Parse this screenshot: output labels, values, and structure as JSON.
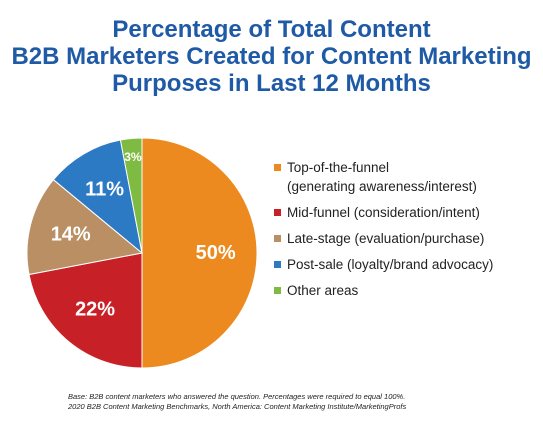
{
  "title_lines": [
    "Percentage of Total Content",
    "B2B Marketers Created for Content Marketing",
    "Purposes in Last 12 Months"
  ],
  "footnote_lines": [
    "Base: B2B content marketers who answered the question. Percentages were required to equal 100%.",
    "2020 B2B Content Marketing Benchmarks, North America: Content Marketing Institute/MarketingProfs"
  ],
  "chart_data": {
    "type": "pie",
    "title": "Percentage of Total Content B2B Marketers Created for Content Marketing Purposes in Last 12 Months",
    "legend_position": "right",
    "slices": [
      {
        "legend_lines": [
          "Top-of-the-funnel",
          "(generating awareness/interest)"
        ],
        "value": 50,
        "label": "50%",
        "color": "#ec8a1f"
      },
      {
        "legend_lines": [
          "Mid-funnel (consideration/intent)"
        ],
        "value": 22,
        "label": "22%",
        "color": "#c82027"
      },
      {
        "legend_lines": [
          "Late-stage (evaluation/purchase)"
        ],
        "value": 14,
        "label": "14%",
        "color": "#b98f63"
      },
      {
        "legend_lines": [
          "Post-sale (loyalty/brand advocacy)"
        ],
        "value": 11,
        "label": "11%",
        "color": "#2c79c4"
      },
      {
        "legend_lines": [
          "Other areas"
        ],
        "value": 3,
        "label": "3%",
        "color": "#7fba42"
      }
    ]
  }
}
